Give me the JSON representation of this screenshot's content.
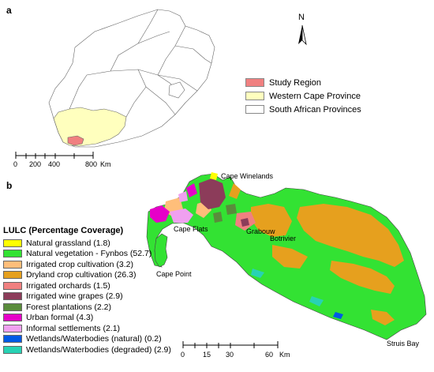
{
  "panels": {
    "a": "a",
    "b": "b"
  },
  "north_arrow": {
    "label": "N"
  },
  "legend_a": {
    "items": [
      {
        "label": "Study Region",
        "color": "#f08080"
      },
      {
        "label": "Western Cape Province",
        "color": "#ffffbe"
      },
      {
        "label": "South African Provinces",
        "color": "#ffffff"
      }
    ]
  },
  "scale_a": {
    "ticks": [
      "0",
      "200",
      "400",
      "800"
    ],
    "unit": "Km"
  },
  "scale_b": {
    "ticks": [
      "0",
      "15",
      "30",
      "60"
    ],
    "unit": "Km"
  },
  "places": {
    "cape_winelands": "Cape Winelands",
    "cape_flats": "Cape Flats",
    "grabouw": "Grabouw",
    "botrivier": "Botrivier",
    "cape_point": "Cape Point",
    "struis_bay": "Struis Bay"
  },
  "legend_b": {
    "title": "LULC (Percentage Coverage)",
    "items": [
      {
        "label": "Natural grassland (1.8)",
        "color": "#ffff00"
      },
      {
        "label": "Natural vegetation - Fynbos (52.7)",
        "color": "#33e233"
      },
      {
        "label": "Irrigated crop cultivation (3.2)",
        "color": "#ffbe7a"
      },
      {
        "label": "Dryland crop cultivation (26.3)",
        "color": "#e6a01e"
      },
      {
        "label": "Irrigated orchards (1.5)",
        "color": "#f08080"
      },
      {
        "label": "Irrigated wine grapes (2.9)",
        "color": "#8c3c5a"
      },
      {
        "label": "Forest plantations (2.2)",
        "color": "#5a8c3c"
      },
      {
        "label": "Urban formal (4.3)",
        "color": "#e600c8"
      },
      {
        "label": "Informal settlements (2.1)",
        "color": "#f0a0f0"
      },
      {
        "label": "Wetlands/Waterbodies (natural) (0.2)",
        "color": "#005ae6"
      },
      {
        "label": "Wetlands/Waterbodies (degraded) (2.9)",
        "color": "#28d2b4"
      }
    ]
  }
}
